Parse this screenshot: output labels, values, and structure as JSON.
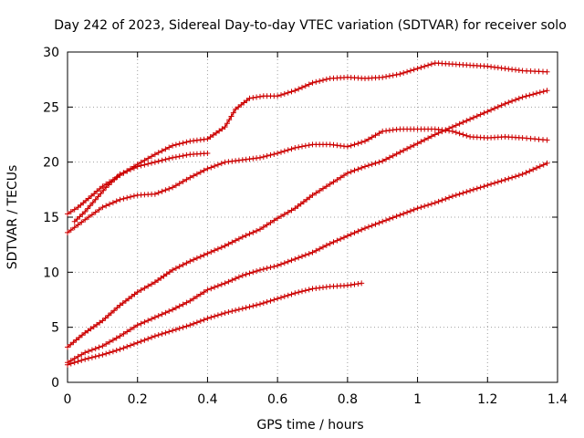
{
  "chart_data": {
    "type": "line",
    "title": "Day 242 of 2023, Sidereal Day-to-day VTEC variation (SDTVAR) for receiver solo",
    "xlabel": "GPS time / hours",
    "ylabel": "SDTVAR / TECUs",
    "xlim": [
      0,
      1.4
    ],
    "ylim": [
      0,
      30
    ],
    "xticks": [
      0,
      0.2,
      0.4,
      0.6,
      0.8,
      1,
      1.2,
      1.4
    ],
    "xtick_labels": [
      "0",
      "0.2",
      "0.4",
      "0.6",
      "0.8",
      "1",
      "1.2",
      "1.4"
    ],
    "yticks": [
      0,
      5,
      10,
      15,
      20,
      25,
      30
    ],
    "ytick_labels": [
      "0",
      "5",
      "10",
      "15",
      "20",
      "25",
      "30"
    ],
    "grid": true,
    "legend": "none",
    "marker": "plus",
    "color": "#cc0000",
    "series": [
      {
        "name": "series-1",
        "x": [
          0.0,
          0.03,
          0.06,
          0.1,
          0.15,
          0.2,
          0.25,
          0.3,
          0.35,
          0.4,
          0.45,
          0.48,
          0.52,
          0.56,
          0.6,
          0.65,
          0.7,
          0.75,
          0.8,
          0.85,
          0.9,
          0.95,
          1.0,
          1.05,
          1.1,
          1.15,
          1.2,
          1.25,
          1.3,
          1.37
        ],
        "y": [
          15.3,
          15.9,
          16.7,
          17.8,
          18.8,
          19.8,
          20.7,
          21.5,
          21.9,
          22.1,
          23.2,
          24.8,
          25.8,
          26.0,
          26.0,
          26.5,
          27.2,
          27.6,
          27.7,
          27.6,
          27.7,
          28.0,
          28.5,
          29.0,
          28.9,
          28.8,
          28.7,
          28.5,
          28.3,
          28.2
        ]
      },
      {
        "name": "series-2",
        "x": [
          0.02,
          0.05,
          0.08,
          0.11,
          0.15,
          0.2,
          0.25,
          0.3,
          0.35,
          0.4
        ],
        "y": [
          14.6,
          15.5,
          16.6,
          17.7,
          18.9,
          19.6,
          20.0,
          20.4,
          20.7,
          20.8
        ]
      },
      {
        "name": "series-3",
        "x": [
          0.0,
          0.03,
          0.06,
          0.1,
          0.15,
          0.2,
          0.25,
          0.3,
          0.35,
          0.4,
          0.45,
          0.5,
          0.55,
          0.6,
          0.65,
          0.7,
          0.75,
          0.8,
          0.85,
          0.9,
          0.95,
          1.0,
          1.05,
          1.1,
          1.15,
          1.2,
          1.25,
          1.3,
          1.37
        ],
        "y": [
          13.6,
          14.3,
          15.0,
          15.9,
          16.6,
          17.0,
          17.1,
          17.7,
          18.6,
          19.4,
          20.0,
          20.2,
          20.4,
          20.8,
          21.3,
          21.6,
          21.6,
          21.4,
          21.9,
          22.8,
          23.0,
          23.0,
          23.0,
          22.8,
          22.3,
          22.2,
          22.3,
          22.2,
          22.0
        ]
      },
      {
        "name": "series-4",
        "x": [
          0.0,
          0.05,
          0.1,
          0.15,
          0.2,
          0.25,
          0.3,
          0.35,
          0.4,
          0.45,
          0.5,
          0.55,
          0.6,
          0.65,
          0.7,
          0.75,
          0.8,
          0.85,
          0.9,
          0.95,
          1.0,
          1.05,
          1.1,
          1.15,
          1.2,
          1.25,
          1.3,
          1.37
        ],
        "y": [
          3.2,
          4.5,
          5.6,
          7.0,
          8.2,
          9.1,
          10.2,
          11.0,
          11.7,
          12.4,
          13.2,
          13.9,
          14.9,
          15.8,
          17.0,
          18.0,
          19.0,
          19.6,
          20.1,
          20.9,
          21.7,
          22.5,
          23.2,
          23.9,
          24.6,
          25.3,
          25.9,
          26.5
        ]
      },
      {
        "name": "series-5",
        "x": [
          0.0,
          0.05,
          0.1,
          0.15,
          0.2,
          0.25,
          0.3,
          0.35,
          0.4,
          0.45,
          0.5,
          0.55,
          0.6,
          0.65,
          0.7,
          0.75,
          0.8,
          0.85,
          0.9,
          0.95,
          1.0,
          1.05,
          1.1,
          1.15,
          1.2,
          1.25,
          1.3,
          1.37
        ],
        "y": [
          1.8,
          2.7,
          3.3,
          4.2,
          5.2,
          5.9,
          6.6,
          7.4,
          8.4,
          9.0,
          9.7,
          10.2,
          10.6,
          11.2,
          11.8,
          12.6,
          13.3,
          14.0,
          14.6,
          15.2,
          15.8,
          16.3,
          16.9,
          17.4,
          17.9,
          18.4,
          18.9,
          19.9
        ]
      },
      {
        "name": "series-6",
        "x": [
          0.0,
          0.05,
          0.1,
          0.15,
          0.2,
          0.25,
          0.3,
          0.35,
          0.4,
          0.45,
          0.5,
          0.55,
          0.6,
          0.65,
          0.7,
          0.75,
          0.8,
          0.84
        ],
        "y": [
          1.6,
          2.1,
          2.5,
          3.0,
          3.6,
          4.2,
          4.7,
          5.2,
          5.8,
          6.3,
          6.7,
          7.1,
          7.6,
          8.1,
          8.5,
          8.7,
          8.8,
          9.0
        ]
      }
    ]
  }
}
